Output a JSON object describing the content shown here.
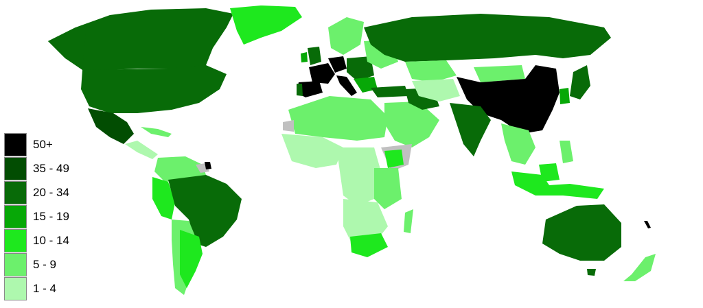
{
  "legend": [
    {
      "label": "50+",
      "color": "#000000"
    },
    {
      "label": "35 - 49",
      "color": "#024d02"
    },
    {
      "label": "20 - 34",
      "color": "#086b08"
    },
    {
      "label": "15 - 19",
      "color": "#07a807"
    },
    {
      "label": "10 - 14",
      "color": "#1ee81e"
    },
    {
      "label": "5 - 9",
      "color": "#6cf06c"
    },
    {
      "label": "1 - 4",
      "color": "#aef8ae"
    }
  ],
  "colors": {
    "no_data": "#c0c0c0",
    "background": "#ffffff"
  }
}
